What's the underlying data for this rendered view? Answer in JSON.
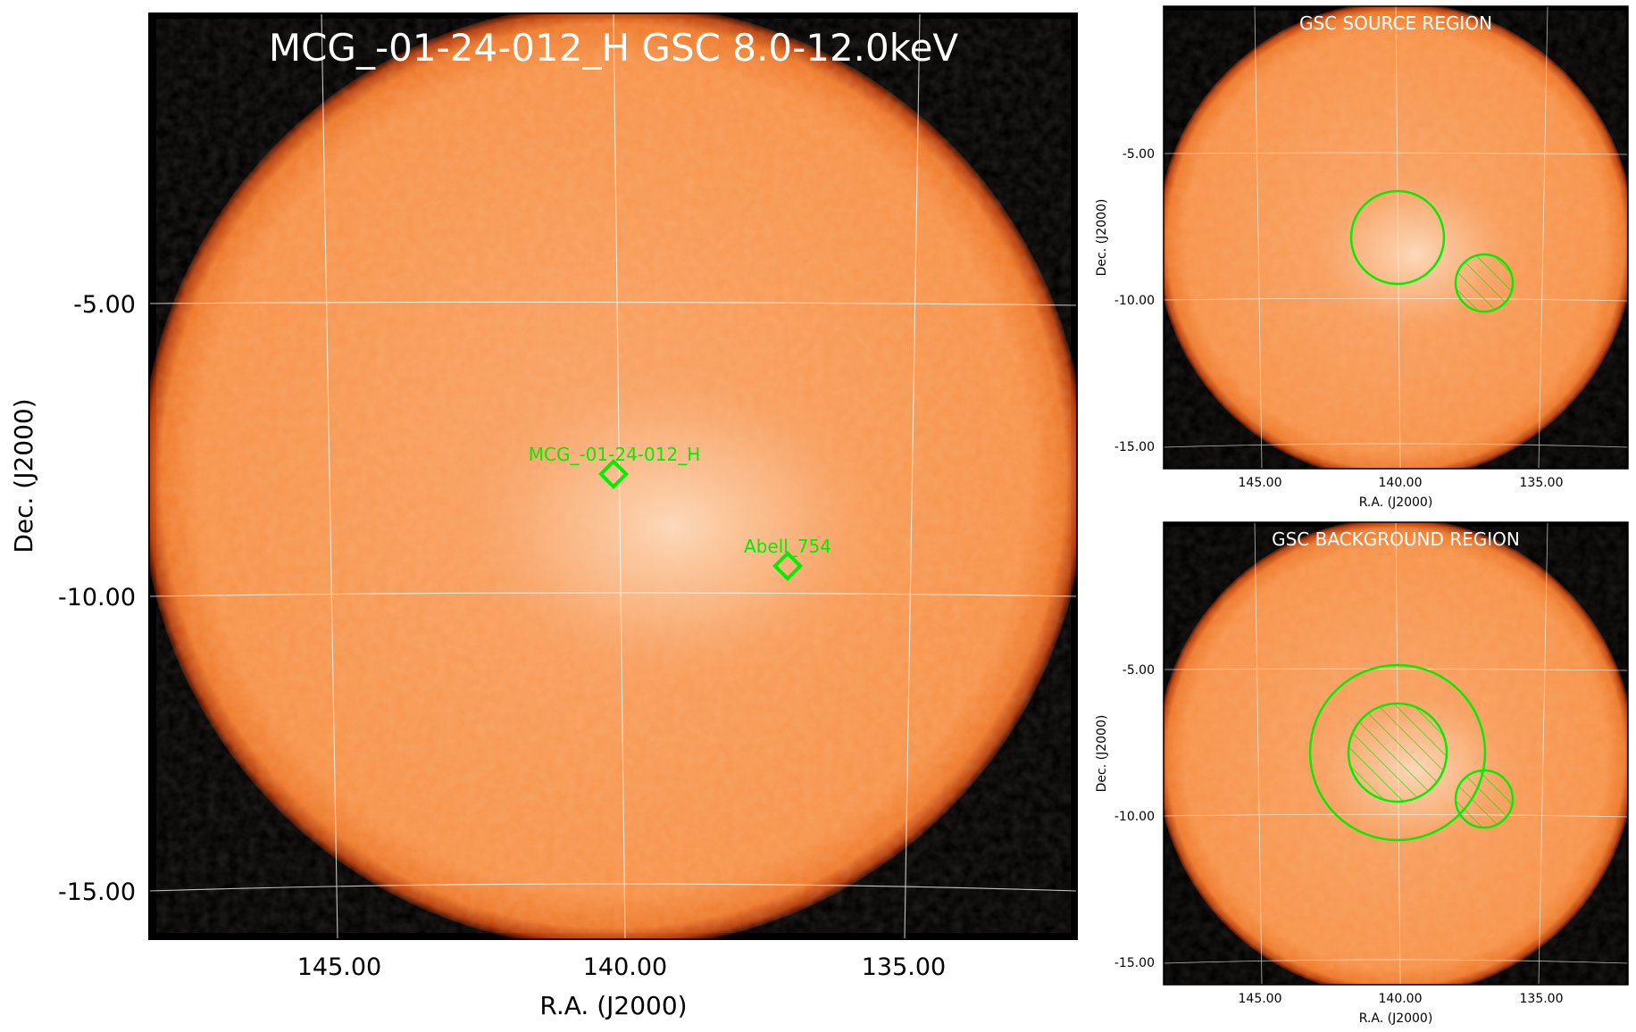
{
  "main_panel": {
    "title": "MCG_-01-24-012_H GSC 8.0-12.0keV",
    "xlabel": "R.A. (J2000)",
    "ylabel": "Dec. (J2000)",
    "x_ticks": [
      "145.00",
      "140.00",
      "135.00"
    ],
    "y_ticks": [
      "-5.00",
      "-10.00",
      "-15.00"
    ],
    "sources": [
      {
        "label": "MCG_-01-24-012_H",
        "ra": 140.2,
        "dec": -8.0
      },
      {
        "label": "Abell_754",
        "ra": 137.2,
        "dec": -9.6
      }
    ]
  },
  "source_panel": {
    "title": "GSC SOURCE REGION",
    "xlabel": "R.A. (J2000)",
    "ylabel": "Dec. (J2000)",
    "x_ticks": [
      "145.00",
      "140.00",
      "135.00"
    ],
    "y_ticks": [
      "-5.00",
      "-10.00",
      "-15.00"
    ]
  },
  "background_panel": {
    "title": "GSC BACKGROUND REGION",
    "xlabel": "R.A. (J2000)",
    "ylabel": "Dec. (J2000)",
    "x_ticks": [
      "145.00",
      "140.00",
      "135.00"
    ],
    "y_ticks": [
      "-5.00",
      "-10.00",
      "-15.00"
    ]
  },
  "colors": {
    "field_orange": "#f7934a",
    "field_highlight": "#fbd3b0",
    "rim": "#3a0c00",
    "region_green": "#00ee00",
    "grid": "#ffffff",
    "title_text": "#ffffff"
  }
}
